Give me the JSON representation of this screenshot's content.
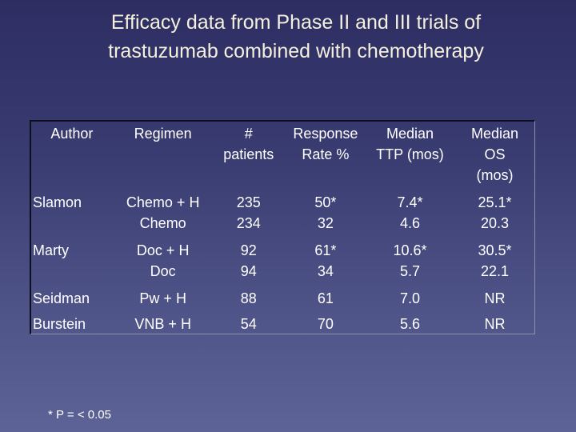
{
  "title": {
    "line1": "Efficacy data from Phase II and III trials of",
    "line2": "trastuzumab combined with chemotherapy"
  },
  "table": {
    "headers": {
      "author": [
        "Author"
      ],
      "regimen": [
        "Regimen"
      ],
      "patients": [
        "#",
        "patients"
      ],
      "response": [
        "Response",
        "Rate %"
      ],
      "ttp": [
        "Median",
        "TTP (mos)"
      ],
      "os": [
        "Median",
        "OS",
        "(mos)"
      ]
    },
    "rows": [
      {
        "author": "Slamon",
        "regimen": [
          "Chemo + H",
          "Chemo"
        ],
        "patients": [
          "235",
          "234"
        ],
        "response": [
          "50*",
          "32"
        ],
        "ttp": [
          "7.4*",
          "4.6"
        ],
        "os": [
          "25.1*",
          "20.3"
        ]
      },
      {
        "author": "Marty",
        "regimen": [
          "Doc + H",
          "Doc"
        ],
        "patients": [
          "92",
          "94"
        ],
        "response": [
          "61*",
          "34"
        ],
        "ttp": [
          "10.6*",
          "5.7"
        ],
        "os": [
          "30.5*",
          "22.1"
        ]
      },
      {
        "author": "Seidman",
        "regimen": [
          "Pw + H"
        ],
        "patients": [
          "88"
        ],
        "response": [
          "61"
        ],
        "ttp": [
          "7.0"
        ],
        "os": [
          "NR"
        ]
      },
      {
        "author": "Burstein",
        "regimen": [
          "VNB + H"
        ],
        "patients": [
          "54"
        ],
        "response": [
          "70"
        ],
        "ttp": [
          "5.6"
        ],
        "os": [
          "NR"
        ]
      }
    ]
  },
  "footnote": "* P = < 0.05"
}
